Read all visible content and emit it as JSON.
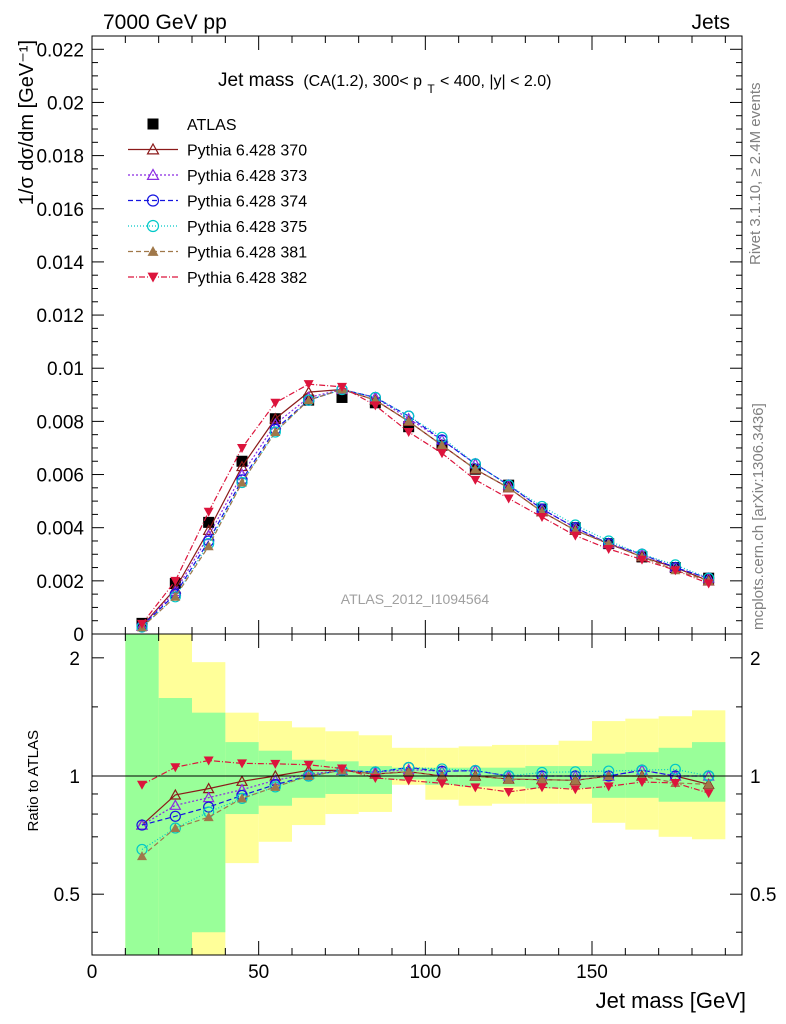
{
  "header": {
    "left": "7000 GeV pp",
    "right": "Jets",
    "side_top": "Rivet 3.1.10, ≥ 2.4M events",
    "side_bottom": "mcplots.cern.ch [arXiv:1306.3436]"
  },
  "chart_data": {
    "type": "scatter",
    "title_main": "Jet mass",
    "title_detail": "(CA(1.2), 300< p",
    "title_sub": "T",
    "title_tail": " < 400, |y| < 2.0)",
    "watermark": "ATLAS_2012_I1094564",
    "xlabel": "Jet mass [GeV]",
    "ylabel": "1/σ dσ/dm [GeV⁻¹]",
    "ratio_ylabel": "Ratio to ATLAS",
    "xlim": [
      0,
      195
    ],
    "ylim": [
      0,
      0.0225
    ],
    "ratio_ylim": [
      0.35,
      2.3
    ],
    "x_ticks": [
      0,
      50,
      100,
      150
    ],
    "x_tick_labels": [
      "0",
      "50",
      "100",
      "150"
    ],
    "y_ticks": [
      0,
      0.002,
      0.004,
      0.006,
      0.008,
      0.01,
      0.012,
      0.014,
      0.016,
      0.018,
      0.02,
      0.022
    ],
    "y_tick_labels": [
      "0",
      "0.002",
      "0.004",
      "0.006",
      "0.008",
      "0.01",
      "0.012",
      "0.014",
      "0.016",
      "0.018",
      "0.02",
      "0.022"
    ],
    "ratio_ticks": [
      0.5,
      1,
      2
    ],
    "ratio_tick_labels": [
      "0.5",
      "1",
      "2"
    ],
    "x": [
      15,
      25,
      35,
      45,
      55,
      65,
      75,
      85,
      95,
      105,
      115,
      125,
      135,
      145,
      155,
      165,
      175,
      185
    ],
    "bin_edges": [
      10,
      20,
      30,
      40,
      50,
      60,
      70,
      80,
      90,
      100,
      110,
      120,
      130,
      140,
      150,
      160,
      170,
      180,
      190
    ],
    "data": {
      "name": "ATLAS",
      "values": [
        0.0004,
        0.0019,
        0.0042,
        0.0065,
        0.0081,
        0.0088,
        0.0089,
        0.0087,
        0.0078,
        0.0071,
        0.0062,
        0.0056,
        0.0047,
        0.004,
        0.0034,
        0.0029,
        0.0025,
        0.0021
      ]
    },
    "band_green": [
      [
        0.35,
        2.3
      ],
      [
        0.35,
        1.58
      ],
      [
        0.4,
        1.45
      ],
      [
        0.8,
        1.22
      ],
      [
        0.84,
        1.16
      ],
      [
        0.88,
        1.1
      ],
      [
        0.9,
        1.09
      ],
      [
        0.9,
        1.06
      ],
      [
        0.98,
        1.05
      ],
      [
        0.95,
        1.05
      ],
      [
        0.94,
        1.05
      ],
      [
        0.94,
        1.05
      ],
      [
        0.93,
        1.06
      ],
      [
        0.93,
        1.06
      ],
      [
        0.88,
        1.14
      ],
      [
        0.88,
        1.15
      ],
      [
        0.86,
        1.18
      ],
      [
        0.86,
        1.22
      ]
    ],
    "band_yellow": [
      [
        0.35,
        2.3
      ],
      [
        0.35,
        2.3
      ],
      [
        0.35,
        1.95
      ],
      [
        0.6,
        1.45
      ],
      [
        0.68,
        1.38
      ],
      [
        0.75,
        1.33
      ],
      [
        0.8,
        1.3
      ],
      [
        0.81,
        1.27
      ],
      [
        0.95,
        1.18
      ],
      [
        0.87,
        1.18
      ],
      [
        0.84,
        1.19
      ],
      [
        0.85,
        1.2
      ],
      [
        0.85,
        1.2
      ],
      [
        0.85,
        1.23
      ],
      [
        0.76,
        1.38
      ],
      [
        0.73,
        1.4
      ],
      [
        0.7,
        1.42
      ],
      [
        0.69,
        1.47
      ]
    ],
    "series": [
      {
        "name": "Pythia 6.428 370",
        "color": "#8b1a1a",
        "marker": "triangle-open",
        "dash": "",
        "values": [
          0.0003,
          0.0017,
          0.0039,
          0.0063,
          0.0081,
          0.0091,
          0.0092,
          0.0088,
          0.008,
          0.0071,
          0.0062,
          0.0055,
          0.0046,
          0.0039,
          0.0034,
          0.0029,
          0.0025,
          0.002
        ]
      },
      {
        "name": "Pythia 6.428 373",
        "color": "#8a2be2",
        "marker": "triangle-open",
        "dash": "2,2",
        "values": [
          0.0003,
          0.0016,
          0.0037,
          0.006,
          0.0079,
          0.0089,
          0.0092,
          0.0089,
          0.0081,
          0.0073,
          0.0064,
          0.0056,
          0.0047,
          0.004,
          0.0034,
          0.003,
          0.0025,
          0.0021
        ]
      },
      {
        "name": "Pythia 6.428 374",
        "color": "#1515e0",
        "marker": "circle-open",
        "dash": "5,3",
        "values": [
          0.0003,
          0.0015,
          0.0035,
          0.0058,
          0.0077,
          0.0088,
          0.0092,
          0.0089,
          0.0082,
          0.0073,
          0.0064,
          0.0056,
          0.0047,
          0.004,
          0.0034,
          0.003,
          0.0025,
          0.0021
        ]
      },
      {
        "name": "Pythia 6.428 375",
        "color": "#00c8c8",
        "marker": "circle-open",
        "dash": "1,2",
        "values": [
          0.00026,
          0.0014,
          0.0034,
          0.0057,
          0.0076,
          0.0088,
          0.0092,
          0.0089,
          0.0082,
          0.0074,
          0.0064,
          0.0056,
          0.0048,
          0.0041,
          0.0035,
          0.003,
          0.0026,
          0.0021
        ]
      },
      {
        "name": "Pythia 6.428 381",
        "color": "#a0784a",
        "marker": "triangle-filled",
        "dash": "5,3",
        "values": [
          0.00025,
          0.0014,
          0.0033,
          0.0057,
          0.0076,
          0.0088,
          0.0092,
          0.0088,
          0.008,
          0.0071,
          0.0062,
          0.0055,
          0.0046,
          0.0039,
          0.0034,
          0.0029,
          0.0024,
          0.002
        ]
      },
      {
        "name": "Pythia 6.428 382",
        "color": "#dc143c",
        "marker": "triangle-down-filled",
        "dash": "6,2,1,2",
        "values": [
          0.00038,
          0.002,
          0.0046,
          0.007,
          0.0087,
          0.0094,
          0.0093,
          0.0086,
          0.0076,
          0.0068,
          0.0058,
          0.0051,
          0.0044,
          0.0037,
          0.0032,
          0.0028,
          0.0024,
          0.0019
        ]
      }
    ]
  }
}
